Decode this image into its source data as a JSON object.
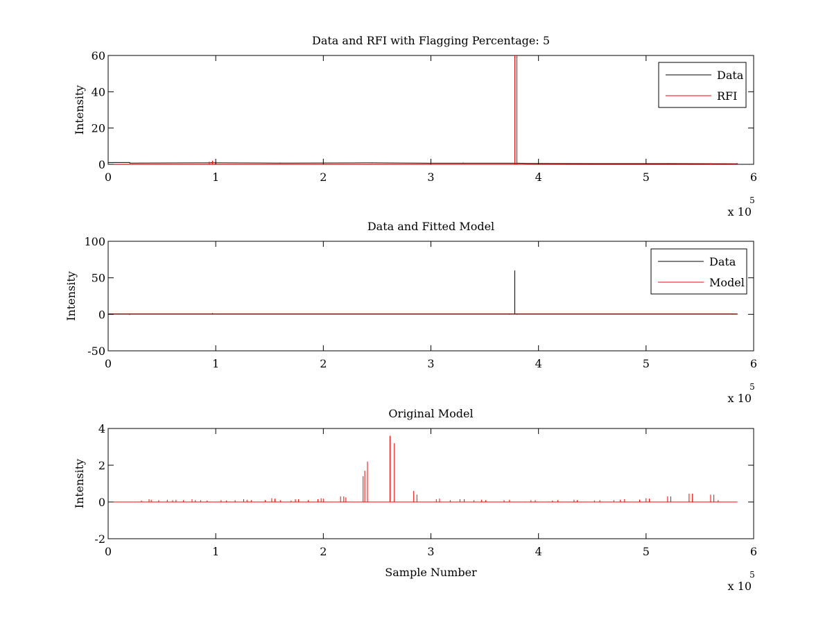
{
  "chart_data": [
    {
      "type": "line",
      "title": "Data and RFI with Flagging Percentage: 5",
      "xlabel": "",
      "ylabel": "Intensity",
      "xlim": [
        0,
        600000
      ],
      "ylim": [
        0,
        60
      ],
      "xticks": [
        0,
        100000,
        200000,
        300000,
        400000,
        500000,
        600000
      ],
      "xtick_labels": [
        "0",
        "1",
        "2",
        "3",
        "4",
        "5",
        "6"
      ],
      "yticks": [
        0,
        20,
        40,
        60
      ],
      "ytick_labels": [
        "0",
        "20",
        "40",
        "60"
      ],
      "x_multiplier": {
        "base": "x 10",
        "exponent": "5"
      },
      "legend": {
        "position": "top-right",
        "entries": [
          {
            "label": "Data",
            "color": "#000000"
          },
          {
            "label": "RFI",
            "color": "#ff0000"
          }
        ]
      },
      "series": [
        {
          "name": "Data",
          "color": "#000000",
          "baseline": 0.6,
          "x": [
            0,
            20000,
            20000,
            100000,
            160000,
            240000,
            300000,
            370000,
            380000,
            390000,
            450000,
            520000,
            585000
          ],
          "y": [
            1.0,
            1.0,
            0.7,
            0.8,
            0.7,
            0.8,
            0.6,
            0.6,
            0.6,
            0.5,
            0.4,
            0.4,
            0.3
          ],
          "spikes": [
            [
              96000,
              1.2
            ],
            [
              160000,
              0.9
            ],
            [
              245000,
              1.0
            ],
            [
              265000,
              0.9
            ],
            [
              300000,
              1.0
            ],
            [
              330000,
              0.9
            ],
            [
              445000,
              0.6
            ],
            [
              520000,
              0.5
            ],
            [
              585000,
              0.4
            ]
          ]
        },
        {
          "name": "RFI",
          "color": "#ff0000",
          "baseline": 0.0,
          "spikes": [
            [
              94000,
              1.5
            ],
            [
              97000,
              2.0
            ],
            [
              100000,
              1.5
            ],
            [
              378000,
              60
            ],
            [
              380000,
              60
            ],
            [
              560000,
              0.6
            ]
          ]
        }
      ]
    },
    {
      "type": "line",
      "title": "Data and Fitted Model",
      "xlabel": "",
      "ylabel": "Intensity",
      "xlim": [
        0,
        600000
      ],
      "ylim": [
        -50,
        100
      ],
      "xticks": [
        0,
        100000,
        200000,
        300000,
        400000,
        500000,
        600000
      ],
      "xtick_labels": [
        "0",
        "1",
        "2",
        "3",
        "4",
        "5",
        "6"
      ],
      "yticks": [
        -50,
        0,
        50,
        100
      ],
      "ytick_labels": [
        "-50",
        "0",
        "50",
        "100"
      ],
      "x_multiplier": {
        "base": "x 10",
        "exponent": "5"
      },
      "legend": {
        "position": "top-right",
        "entries": [
          {
            "label": "Data",
            "color": "#000000"
          },
          {
            "label": "Model",
            "color": "#ff0000"
          }
        ]
      },
      "series": [
        {
          "name": "Data",
          "color": "#000000",
          "baseline": 0.5,
          "spikes": [
            [
              20000,
              -0.8
            ],
            [
              97000,
              1.5
            ],
            [
              373000,
              -0.6
            ],
            [
              378000,
              60
            ],
            [
              380000,
              -0.6
            ],
            [
              580000,
              -0.5
            ]
          ]
        },
        {
          "name": "Model",
          "color": "#ff0000",
          "baseline": 0.0,
          "spikes": []
        }
      ]
    },
    {
      "type": "line",
      "title": "Original Model",
      "xlabel": "Sample Number",
      "ylabel": "Intensity",
      "xlim": [
        0,
        600000
      ],
      "ylim": [
        -2,
        4
      ],
      "xticks": [
        0,
        100000,
        200000,
        300000,
        400000,
        500000,
        600000
      ],
      "xtick_labels": [
        "0",
        "1",
        "2",
        "3",
        "4",
        "5",
        "6"
      ],
      "yticks": [
        -2,
        0,
        2,
        4
      ],
      "ytick_labels": [
        "-2",
        "0",
        "2",
        "4"
      ],
      "x_multiplier": {
        "base": "x 10",
        "exponent": "5"
      },
      "series": [
        {
          "name": "",
          "color": "#ff0000",
          "baseline": 0.0,
          "spikes": [
            [
              31000,
              0.08
            ],
            [
              38000,
              0.15
            ],
            [
              40000,
              0.12
            ],
            [
              47000,
              0.1
            ],
            [
              55000,
              0.12
            ],
            [
              60000,
              0.1
            ],
            [
              63000,
              0.12
            ],
            [
              70000,
              0.1
            ],
            [
              78000,
              0.15
            ],
            [
              81000,
              0.1
            ],
            [
              86000,
              0.1
            ],
            [
              92000,
              0.08
            ],
            [
              105000,
              0.1
            ],
            [
              110000,
              0.08
            ],
            [
              118000,
              0.1
            ],
            [
              126000,
              0.15
            ],
            [
              129000,
              0.12
            ],
            [
              133000,
              0.1
            ],
            [
              146000,
              0.1
            ],
            [
              152000,
              0.2
            ],
            [
              155000,
              0.18
            ],
            [
              160000,
              0.1
            ],
            [
              170000,
              0.08
            ],
            [
              174000,
              0.15
            ],
            [
              177000,
              0.15
            ],
            [
              186000,
              0.1
            ],
            [
              195000,
              0.15
            ],
            [
              198000,
              0.2
            ],
            [
              200000,
              0.18
            ],
            [
              216000,
              0.3
            ],
            [
              219000,
              0.3
            ],
            [
              221000,
              0.25
            ],
            [
              237000,
              1.4
            ],
            [
              238500,
              1.7
            ],
            [
              241000,
              2.2
            ],
            [
              262000,
              3.6
            ],
            [
              266000,
              3.2
            ],
            [
              284000,
              0.6
            ],
            [
              287000,
              0.4
            ],
            [
              305000,
              0.15
            ],
            [
              308000,
              0.18
            ],
            [
              318000,
              0.1
            ],
            [
              327000,
              0.15
            ],
            [
              331000,
              0.15
            ],
            [
              340000,
              0.1
            ],
            [
              347000,
              0.12
            ],
            [
              351000,
              0.1
            ],
            [
              368000,
              0.1
            ],
            [
              373000,
              0.12
            ],
            [
              393000,
              0.1
            ],
            [
              397000,
              0.1
            ],
            [
              413000,
              0.08
            ],
            [
              418000,
              0.1
            ],
            [
              433000,
              0.12
            ],
            [
              436000,
              0.1
            ],
            [
              452000,
              0.08
            ],
            [
              457000,
              0.1
            ],
            [
              470000,
              0.1
            ],
            [
              476000,
              0.12
            ],
            [
              480000,
              0.15
            ],
            [
              494000,
              0.12
            ],
            [
              500000,
              0.2
            ],
            [
              503000,
              0.18
            ],
            [
              520000,
              0.3
            ],
            [
              523000,
              0.3
            ],
            [
              540000,
              0.45
            ],
            [
              543000,
              0.45
            ],
            [
              560000,
              0.4
            ],
            [
              563000,
              0.4
            ],
            [
              567000,
              0.1
            ]
          ]
        }
      ]
    }
  ]
}
